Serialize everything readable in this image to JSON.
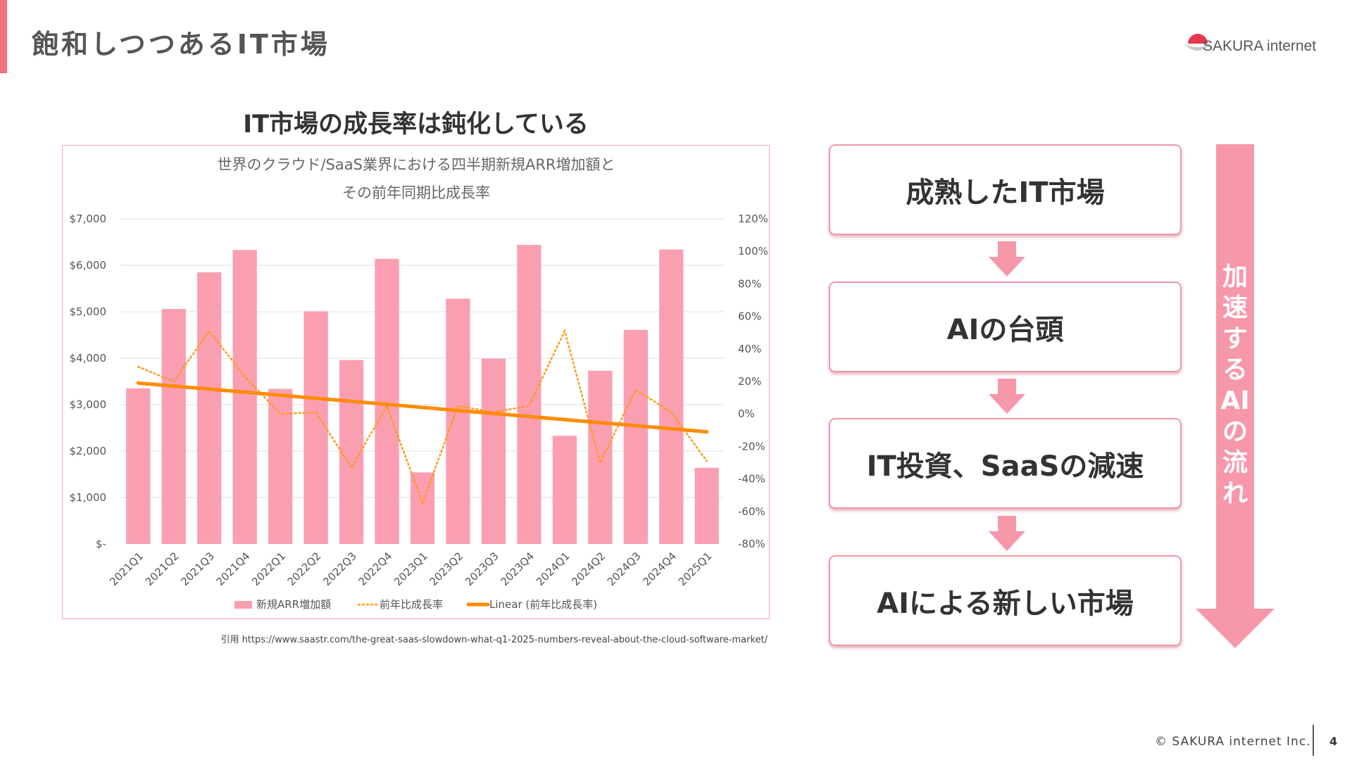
{
  "slide": {
    "title": "飽和しつつあるIT市場",
    "brand": "SAKURA internet",
    "copyright": "© SAKURA internet Inc.",
    "page_number": "4",
    "colors": {
      "accent": "#f0727f",
      "pink_bar": "#fa9fb2",
      "orange": "#ff8b00",
      "arrow": "#f797aa"
    }
  },
  "chart_heading": "IT市場の成長率は鈍化している",
  "citation": "引用 https://www.saastr.com/the-great-saas-slowdown-what-q1-2025-numbers-reveal-about-the-cloud-software-market/",
  "chart_data": {
    "type": "bar",
    "title_line1": "世界のクラウド/SaaS業界における四半期新規ARR増加額と",
    "title_line2": "その前年同期比成長率",
    "categories": [
      "2021Q1",
      "2021Q2",
      "2021Q3",
      "2021Q4",
      "2022Q1",
      "2022Q2",
      "2022Q3",
      "2022Q4",
      "2023Q1",
      "2023Q2",
      "2023Q3",
      "2023Q4",
      "2024Q1",
      "2024Q2",
      "2024Q3",
      "2024Q4",
      "2025Q1"
    ],
    "series": [
      {
        "name": "新規ARR増加額",
        "type": "bar",
        "axis": "left",
        "values": [
          3350,
          5060,
          5850,
          6330,
          3340,
          5010,
          3960,
          6140,
          1540,
          5280,
          3990,
          6440,
          2330,
          3730,
          4610,
          6340,
          1640
        ]
      },
      {
        "name": "前年比成長率",
        "type": "line",
        "style": "dotted",
        "axis": "right",
        "values": [
          29,
          20,
          51,
          23,
          0,
          1,
          -33,
          5,
          -55,
          5,
          1,
          5,
          51,
          -30,
          15,
          1,
          -29
        ]
      },
      {
        "name": "Linear (前年比成長率)",
        "type": "line",
        "style": "trendline",
        "axis": "right",
        "values": [
          19,
          17.1,
          15.3,
          13.4,
          11.5,
          9.6,
          7.8,
          5.9,
          4.0,
          2.1,
          0.3,
          -1.6,
          -3.5,
          -5.4,
          -7.2,
          -9.1,
          -11
        ]
      }
    ],
    "y_left": {
      "min": 0,
      "max": 7000,
      "ticks": [
        "$-",
        "$1,000",
        "$2,000",
        "$3,000",
        "$4,000",
        "$5,000",
        "$6,000",
        "$7,000"
      ]
    },
    "y_right": {
      "min": -80,
      "max": 120,
      "ticks": [
        "-80%",
        "-60%",
        "-40%",
        "-20%",
        "0%",
        "20%",
        "40%",
        "60%",
        "80%",
        "100%",
        "120%"
      ]
    },
    "legend": [
      "新規ARR増加額",
      "前年比成長率",
      "Linear (前年比成長率)"
    ],
    "grid": true,
    "legend_position": "bottom"
  },
  "flow": {
    "boxes": [
      "成熟したIT市場",
      "AIの台頭",
      "IT投資、SaaSの減速",
      "AIによる新しい市場"
    ],
    "side_label": "加速するAIの流れ"
  }
}
